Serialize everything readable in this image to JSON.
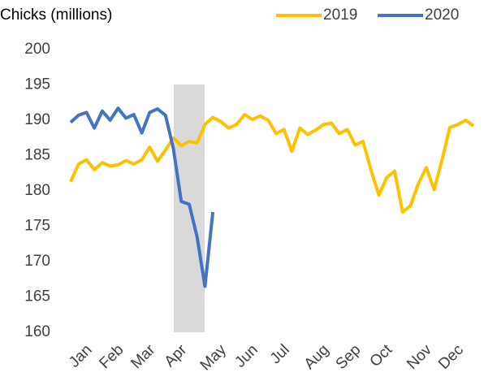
{
  "chart_data": {
    "type": "line",
    "title": "Chicks (millions)",
    "categories": [
      null,
      null,
      "Jan",
      null,
      null,
      null,
      "Feb",
      null,
      null,
      null,
      "Mar",
      null,
      null,
      null,
      "Apr",
      null,
      null,
      null,
      null,
      "May",
      null,
      null,
      null,
      "Jun",
      null,
      null,
      null,
      "Jul",
      null,
      null,
      null,
      null,
      "Aug",
      null,
      null,
      null,
      "Sep",
      null,
      null,
      null,
      "Oct",
      null,
      null,
      null,
      null,
      "Nov",
      null,
      null,
      null,
      "Dec",
      null,
      null
    ],
    "series": [
      {
        "name": "2019",
        "color": "#ffc000",
        "values": [
          181.3,
          183.8,
          184.4,
          183.0,
          184.0,
          183.5,
          183.7,
          184.3,
          183.8,
          184.4,
          186.2,
          184.2,
          185.8,
          187.5,
          186.4,
          187.0,
          186.8,
          189.4,
          190.4,
          189.8,
          188.9,
          189.4,
          190.8,
          190.1,
          190.6,
          190.0,
          188.1,
          188.7,
          185.6,
          188.9,
          188.0,
          188.6,
          189.4,
          189.6,
          188.1,
          188.7,
          186.5,
          187.0,
          183.0,
          179.4,
          181.9,
          182.8,
          177.0,
          177.9,
          181.0,
          183.3,
          180.2,
          184.4,
          189.0,
          189.4,
          190.0,
          189.2
        ]
      },
      {
        "name": "2020",
        "color": "#4472c4",
        "values": [
          189.7,
          190.7,
          191.1,
          188.9,
          191.3,
          190.0,
          191.7,
          190.3,
          190.8,
          188.2,
          191.1,
          191.6,
          190.7,
          186.0,
          178.5,
          178.1,
          173.5,
          166.5,
          177.0,
          null,
          null,
          null,
          null,
          null,
          null,
          null,
          null,
          null,
          null,
          null,
          null,
          null,
          null,
          null,
          null,
          null,
          null,
          null,
          null,
          null,
          null,
          null,
          null,
          null,
          null,
          null,
          null,
          null,
          null,
          null,
          null,
          null
        ]
      }
    ],
    "ylim": [
      160,
      200
    ],
    "yticks": [
      160,
      165,
      170,
      175,
      180,
      185,
      190,
      195,
      200
    ],
    "grid": false,
    "legend": "top-right"
  }
}
